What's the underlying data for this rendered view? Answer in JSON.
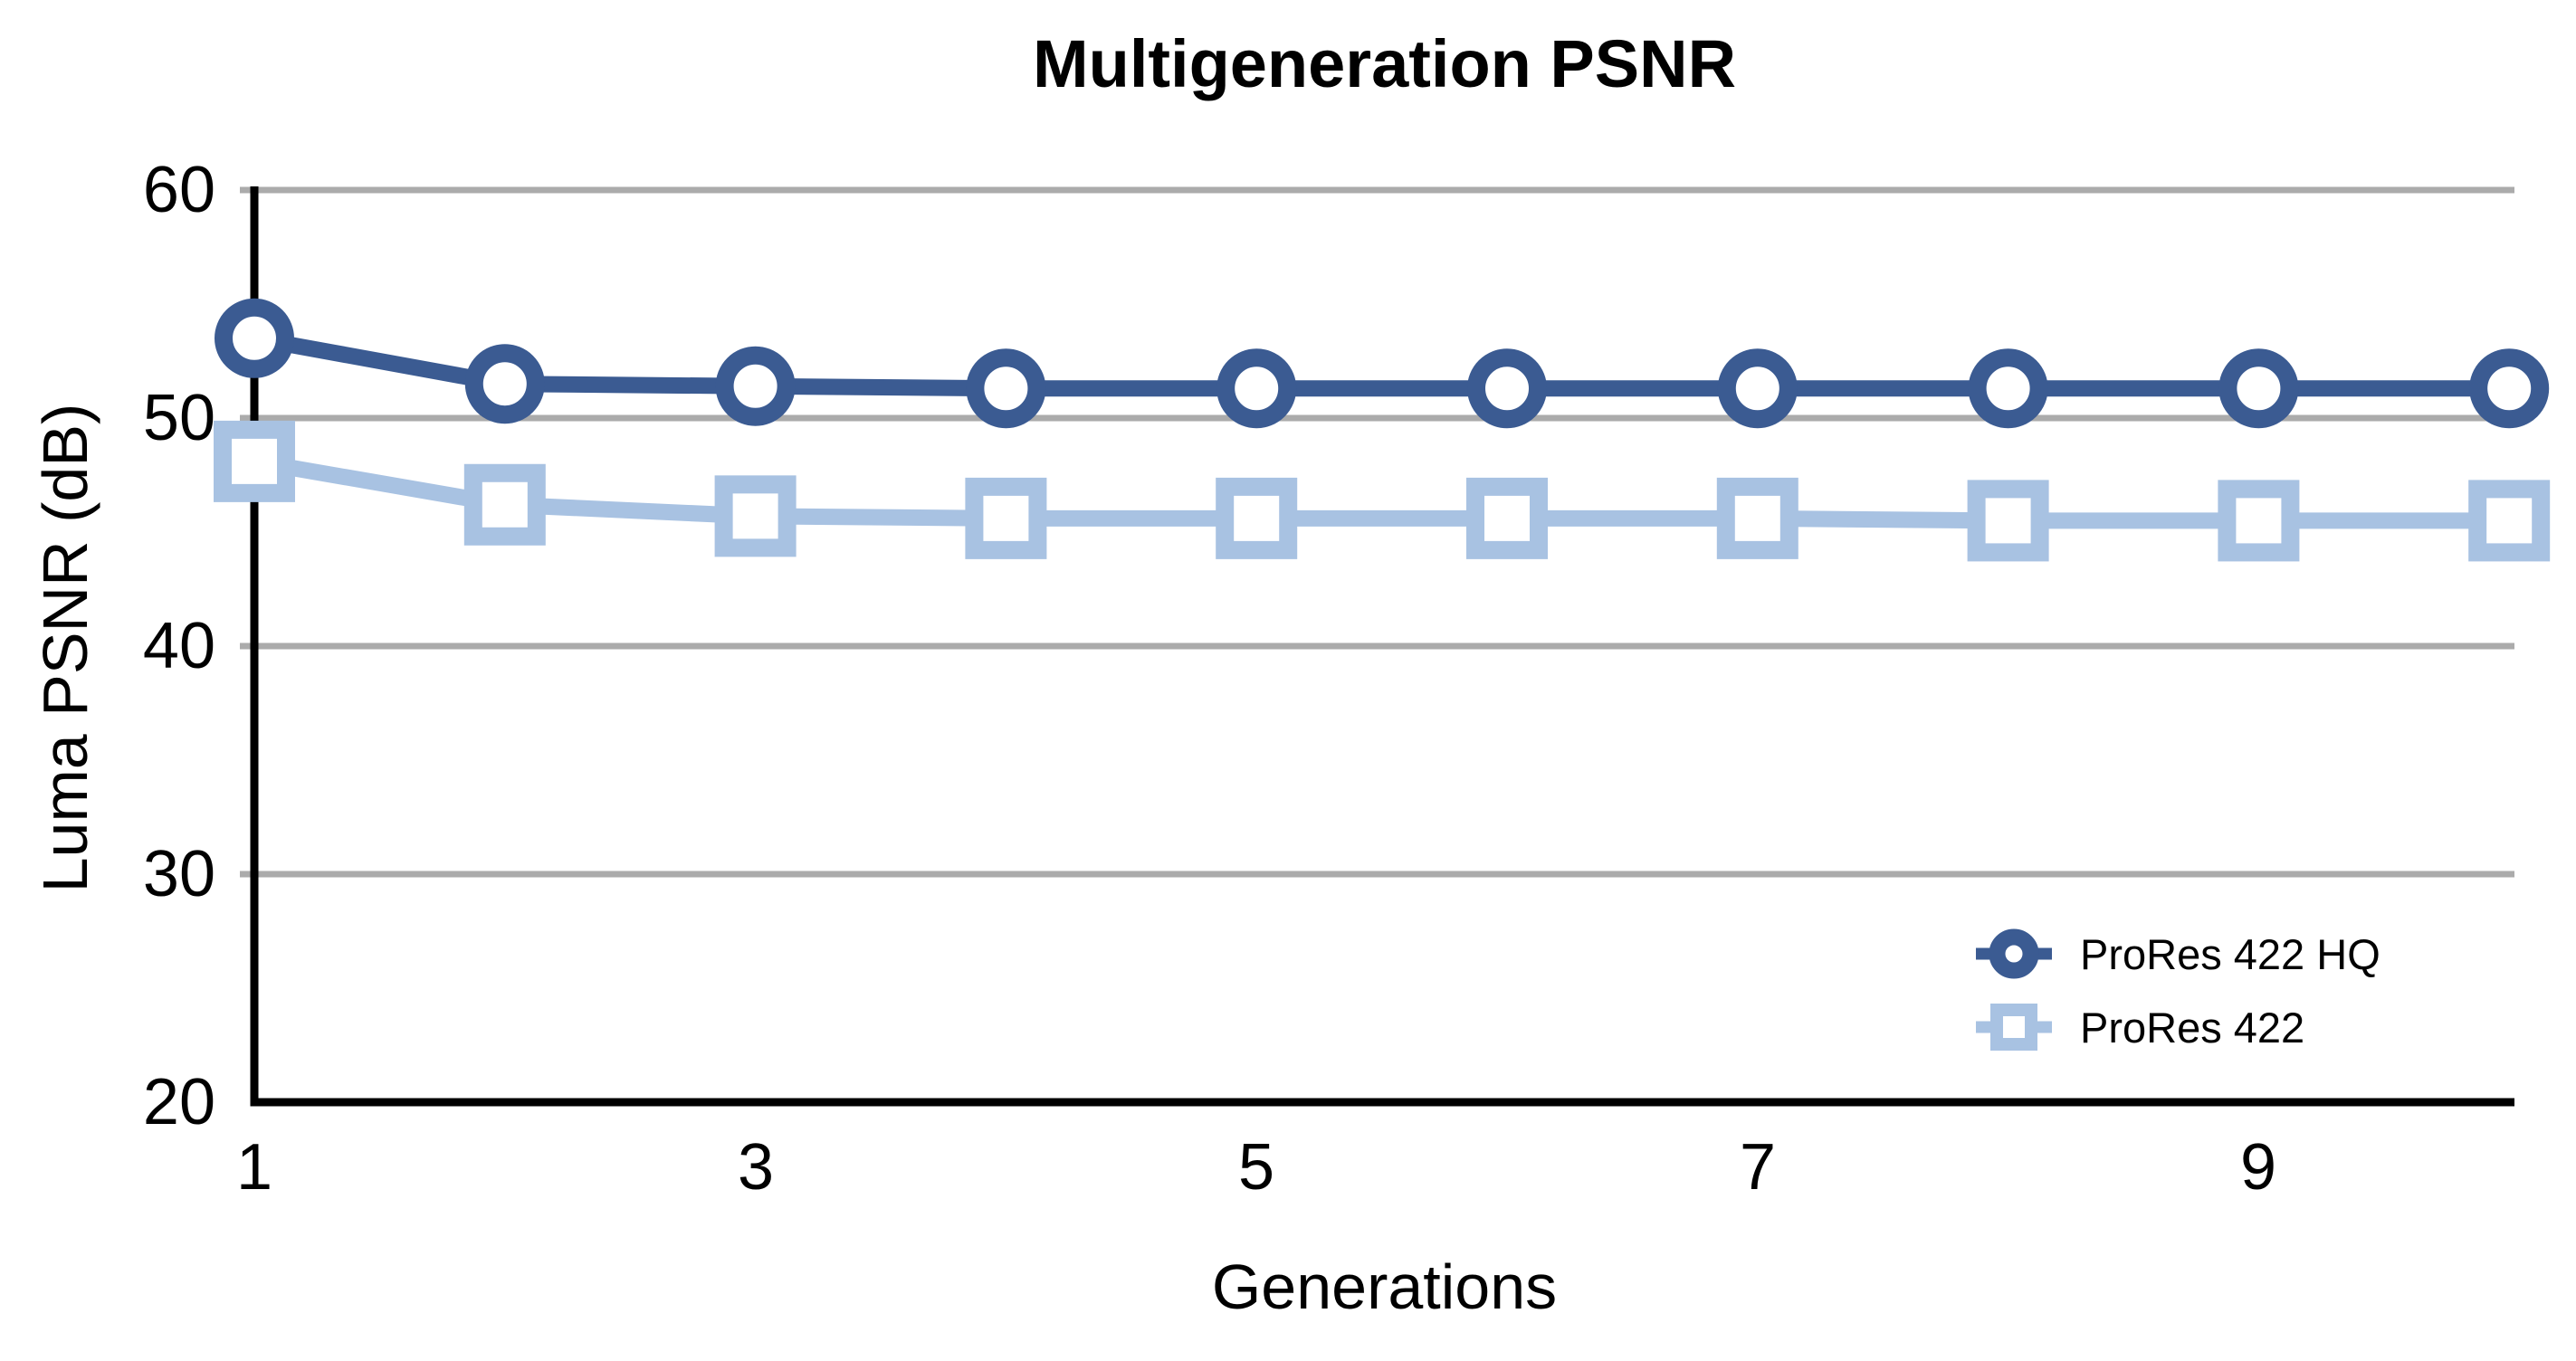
{
  "chart_data": {
    "type": "line",
    "title": "Multigeneration PSNR",
    "xlabel": "Generations",
    "ylabel": "Luma PSNR (dB)",
    "x": [
      1,
      2,
      3,
      4,
      5,
      6,
      7,
      8,
      9,
      10
    ],
    "xlim": [
      1,
      10
    ],
    "ylim": [
      20,
      60
    ],
    "yticks": [
      60,
      50,
      40,
      30,
      20
    ],
    "xticks": [
      1,
      3,
      5,
      7,
      9
    ],
    "grid": "horizontal-only",
    "gridline_color": "#ABABAB",
    "axis_color": "#000000",
    "marker_fill": "#FFFFFF",
    "legend_position": "inside-bottom-right",
    "series": [
      {
        "name": "ProRes 422 HQ",
        "marker": "circle",
        "color": "#3B5B92",
        "values": [
          53.5,
          51.5,
          51.4,
          51.3,
          51.3,
          51.3,
          51.3,
          51.3,
          51.3,
          51.3
        ]
      },
      {
        "name": "ProRes 422",
        "marker": "square",
        "color": "#A8C2E2",
        "values": [
          48.1,
          46.2,
          45.7,
          45.6,
          45.6,
          45.6,
          45.6,
          45.5,
          45.5,
          45.5
        ]
      }
    ]
  }
}
